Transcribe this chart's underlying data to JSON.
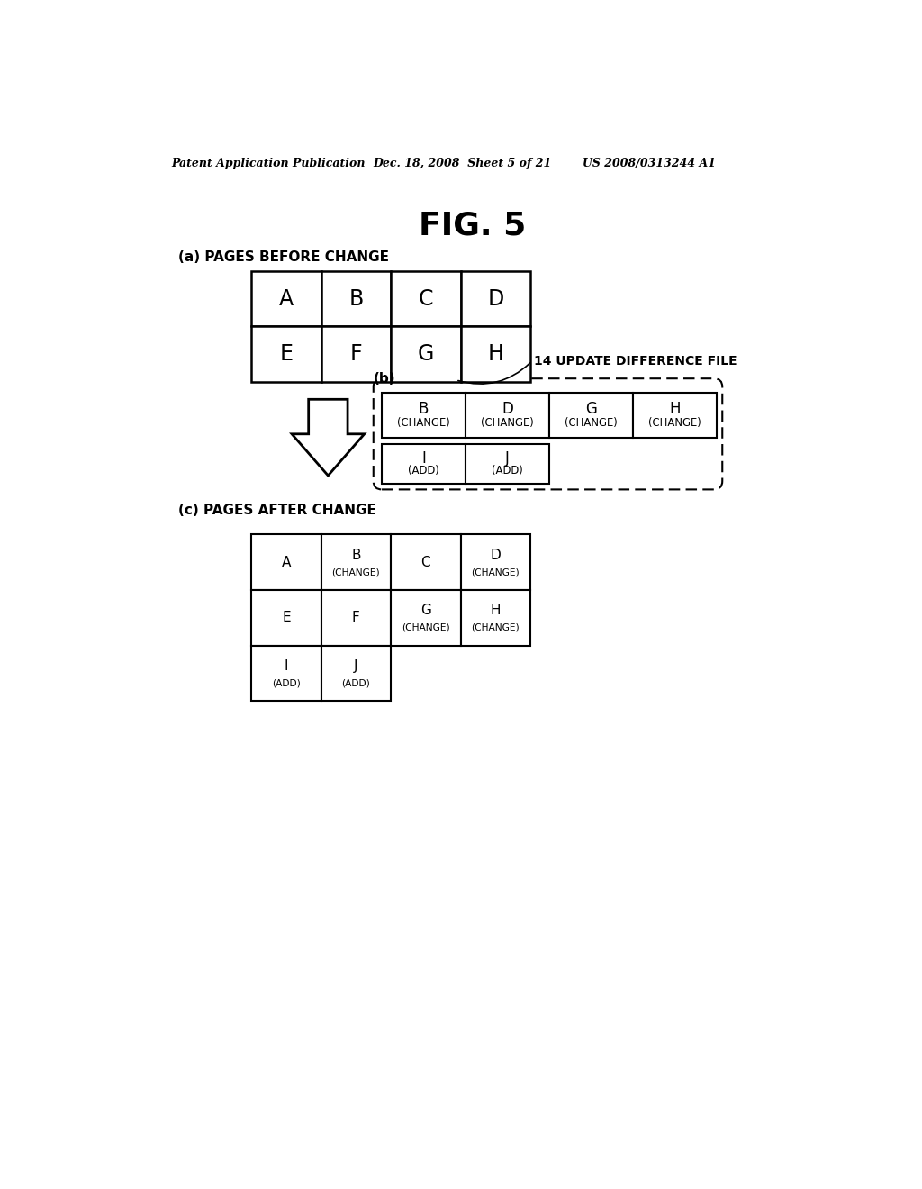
{
  "bg_color": "#ffffff",
  "header_left": "Patent Application Publication",
  "header_mid": "Dec. 18, 2008  Sheet 5 of 21",
  "header_right": "US 2008/0313244 A1",
  "fig_title": "FIG. 5",
  "section_a_label": "(a) PAGES BEFORE CHANGE",
  "section_b_label": "(b)",
  "section_b_note": "14 UPDATE DIFFERENCE FILE",
  "section_c_label": "(c) PAGES AFTER CHANGE",
  "table_a_cells": [
    [
      "A",
      "B",
      "C",
      "D"
    ],
    [
      "E",
      "F",
      "G",
      "H"
    ]
  ],
  "table_b_row1": [
    [
      "B",
      "(CHANGE)"
    ],
    [
      "D",
      "(CHANGE)"
    ],
    [
      "G",
      "(CHANGE)"
    ],
    [
      "H",
      "(CHANGE)"
    ]
  ],
  "table_b_row2": [
    [
      "I",
      "(ADD)"
    ],
    [
      "J",
      "(ADD)"
    ]
  ],
  "table_c_row0": [
    [
      "A",
      ""
    ],
    [
      "B",
      "(CHANGE)"
    ],
    [
      "C",
      ""
    ],
    [
      "D",
      "(CHANGE)"
    ]
  ],
  "table_c_row1": [
    [
      "E",
      ""
    ],
    [
      "F",
      ""
    ],
    [
      "G",
      "(CHANGE)"
    ],
    [
      "H",
      "(CHANGE)"
    ]
  ],
  "table_c_row2": [
    [
      "I",
      "(ADD)"
    ],
    [
      "J",
      "(ADD)"
    ]
  ]
}
